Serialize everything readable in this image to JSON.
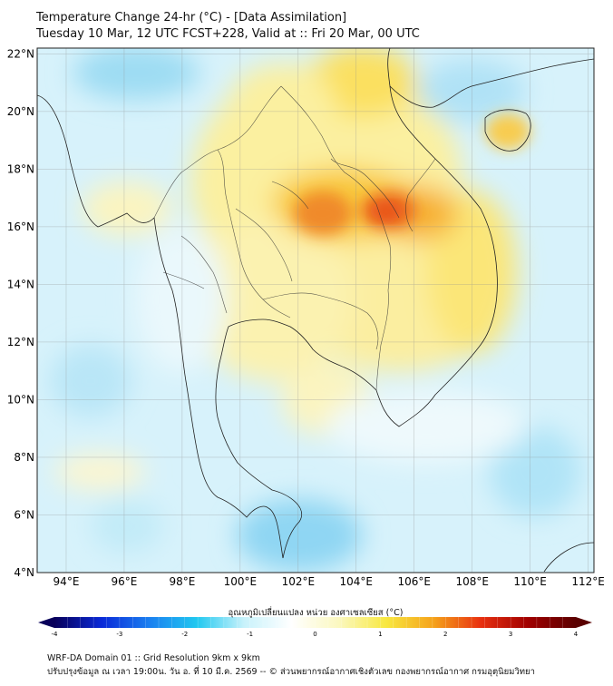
{
  "title": {
    "line1": "Temperature Change 24-hr (°C) - [Data Assimilation]",
    "line2": "Tuesday 10 Mar, 12 UTC FCST+228, Valid at :: Fri 20 Mar, 00 UTC"
  },
  "map": {
    "lon_labels": [
      "94°E",
      "96°E",
      "98°E",
      "100°E",
      "102°E",
      "104°E",
      "106°E",
      "108°E",
      "110°E",
      "112°E"
    ],
    "lat_labels": [
      "22°N",
      "20°N",
      "18°N",
      "16°N",
      "14°N",
      "12°N",
      "10°N",
      "8°N",
      "6°N",
      "4°N"
    ],
    "extent": {
      "lon_min": 93,
      "lon_max": 112.2,
      "lat_min": 4,
      "lat_max": 22.2
    }
  },
  "colorbar": {
    "label": "อุณหภูมิเปลี่ยนแปลง หน่วย องศาเซลเซียส (°C)",
    "ticks": [
      "-4",
      "-3",
      "-2",
      "-1",
      "0",
      "1",
      "2",
      "3",
      "4"
    ],
    "range": [
      -4,
      4
    ],
    "colors": [
      "#08005a",
      "#0a2ad8",
      "#1a7ff0",
      "#20c8f0",
      "#c8f2fb",
      "#ffffff",
      "#fbf8c0",
      "#f8e840",
      "#f5a21a",
      "#e83010",
      "#a00000",
      "#5a0000"
    ]
  },
  "footer": {
    "line1": "WRF-DA Domain 01 :: Grid Resolution 9km x 9km",
    "line2": "ปรับปรุงข้อมูล ณ เวลา 19:00น. วัน อ. ที่ 10 มี.ค. 2569 -- © ส่วนพยากรณ์อากาศเชิงตัวเลข กองพยากรณ์อากาศ กรมอุตุนิยมวิทยา"
  }
}
